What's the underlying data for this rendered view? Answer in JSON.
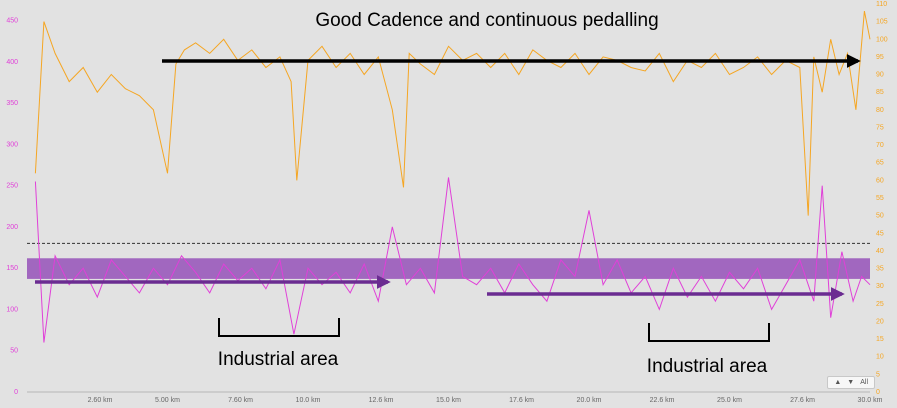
{
  "chart_data": {
    "type": "line",
    "x_unit": "km",
    "x_range": [
      0,
      30.0
    ],
    "x_ticks": [
      "2.60 km",
      "5.00 km",
      "7.60 km",
      "10.0 km",
      "12.6 km",
      "15.0 km",
      "17.6 km",
      "20.0 km",
      "22.6 km",
      "25.0 km",
      "27.6 km",
      "30.0 km"
    ],
    "y_left": {
      "ticks": [
        "0",
        "50",
        "100",
        "150",
        "200",
        "250",
        "300",
        "350",
        "400",
        "450"
      ],
      "range": [
        0,
        470
      ],
      "color": "#e040d8"
    },
    "y_right": {
      "ticks": [
        "0",
        "5",
        "10",
        "15",
        "20",
        "25",
        "30",
        "35",
        "40",
        "45",
        "50",
        "55",
        "60",
        "65",
        "70",
        "75",
        "80",
        "85",
        "90",
        "95",
        "100",
        "105",
        "110"
      ],
      "range": [
        0,
        110
      ],
      "color": "#f5a623"
    },
    "reference_line_left": 180,
    "band_left": [
      137,
      162
    ],
    "series": [
      {
        "color": "#f5a623",
        "axis": "right",
        "x": [
          0.3,
          0.6,
          1.0,
          1.5,
          2.0,
          2.5,
          3.0,
          3.5,
          4.0,
          4.5,
          5.0,
          5.3,
          5.6,
          6.0,
          6.5,
          7.0,
          7.5,
          8.0,
          8.5,
          9.0,
          9.4,
          9.6,
          10.0,
          10.5,
          11.0,
          11.5,
          12.0,
          12.5,
          13.0,
          13.4,
          13.6,
          14.0,
          14.5,
          15.0,
          15.5,
          16.0,
          16.5,
          17.0,
          17.5,
          18.0,
          18.5,
          19.0,
          19.5,
          20.0,
          20.5,
          21.0,
          21.5,
          22.0,
          22.5,
          23.0,
          23.5,
          24.0,
          24.5,
          25.0,
          25.5,
          26.0,
          26.5,
          27.0,
          27.5,
          27.8,
          28.0,
          28.3,
          28.6,
          28.9,
          29.2,
          29.5,
          29.8,
          30.0
        ],
        "values": [
          62,
          105,
          96,
          88,
          92,
          85,
          90,
          86,
          84,
          80,
          62,
          93,
          97,
          99,
          96,
          100,
          94,
          97,
          92,
          95,
          88,
          60,
          94,
          98,
          92,
          96,
          90,
          95,
          80,
          58,
          96,
          93,
          90,
          98,
          94,
          96,
          92,
          96,
          90,
          97,
          94,
          92,
          96,
          90,
          95,
          94,
          92,
          91,
          96,
          88,
          94,
          92,
          96,
          90,
          92,
          95,
          90,
          94,
          92,
          50,
          95,
          85,
          100,
          90,
          96,
          80,
          108,
          100
        ]
      },
      {
        "color": "#e040d8",
        "axis": "left",
        "x": [
          0.3,
          0.6,
          1.0,
          1.5,
          2.0,
          2.5,
          3.0,
          3.5,
          4.0,
          4.5,
          5.0,
          5.5,
          6.0,
          6.5,
          7.0,
          7.5,
          8.0,
          8.5,
          9.0,
          9.5,
          10.0,
          10.5,
          11.0,
          11.5,
          12.0,
          12.5,
          13.0,
          13.5,
          14.0,
          14.5,
          15.0,
          15.5,
          16.0,
          16.5,
          17.0,
          17.5,
          18.0,
          18.5,
          19.0,
          19.5,
          20.0,
          20.5,
          21.0,
          21.5,
          22.0,
          22.5,
          23.0,
          23.5,
          24.0,
          24.5,
          25.0,
          25.5,
          26.0,
          26.5,
          27.0,
          27.5,
          28.0,
          28.3,
          28.6,
          29.0,
          29.4,
          29.7,
          30.0
        ],
        "values": [
          255,
          60,
          165,
          130,
          150,
          115,
          160,
          140,
          120,
          150,
          130,
          165,
          145,
          120,
          155,
          135,
          150,
          125,
          160,
          70,
          150,
          130,
          145,
          120,
          155,
          110,
          200,
          130,
          150,
          120,
          260,
          140,
          130,
          150,
          120,
          155,
          130,
          110,
          160,
          140,
          220,
          130,
          160,
          120,
          140,
          100,
          150,
          115,
          140,
          110,
          145,
          125,
          150,
          100,
          130,
          160,
          110,
          250,
          90,
          170,
          110,
          140,
          130
        ]
      }
    ],
    "annotations": [
      "Good Cadence and continuous pedalling",
      "Industrial area",
      "Industrial area"
    ]
  },
  "nav": {
    "up_label": "▲",
    "down_label": "▼",
    "all_label": "All"
  }
}
